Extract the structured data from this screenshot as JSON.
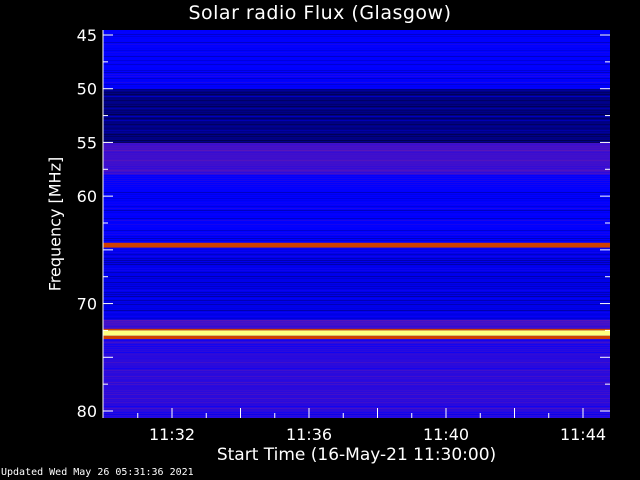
{
  "chart_data": {
    "type": "heatmap",
    "title": "Solar radio Flux (Glasgow)",
    "xlabel": "Start Time (16-May-21 11:30:00)",
    "ylabel": "Frequency [MHz]",
    "x_ticks": [
      "11:32",
      "11:36",
      "11:40",
      "11:44"
    ],
    "x_tick_minutes": [
      2,
      6,
      10,
      14
    ],
    "xlim_minutes": [
      0,
      14.8
    ],
    "y_ticks": [
      45,
      50,
      55,
      60,
      70,
      80
    ],
    "ylim": [
      45,
      80
    ],
    "y_inverted": true,
    "colormap": [
      "#000033",
      "#0000ff",
      "#6a1aa8",
      "#c00000",
      "#ffff00",
      "#ffffff"
    ],
    "bands": [
      {
        "from": 45,
        "to": 50,
        "level": 0.2
      },
      {
        "from": 50,
        "to": 55,
        "level": 0.08
      },
      {
        "from": 55,
        "to": 58,
        "level": 0.35
      },
      {
        "from": 58,
        "to": 64.3,
        "level": 0.2
      },
      {
        "from": 64.3,
        "to": 64.8,
        "level": 0.75
      },
      {
        "from": 64.8,
        "to": 71.5,
        "level": 0.18
      },
      {
        "from": 71.5,
        "to": 72.3,
        "level": 0.35
      },
      {
        "from": 72.3,
        "to": 72.5,
        "level": 0.75
      },
      {
        "from": 72.5,
        "to": 73.0,
        "level": 0.95
      },
      {
        "from": 73.0,
        "to": 73.3,
        "level": 0.75
      },
      {
        "from": 73.3,
        "to": 80,
        "level": 0.3
      }
    ]
  },
  "footer": {
    "updated": "Updated Wed May 26 05:31:36 2021"
  }
}
